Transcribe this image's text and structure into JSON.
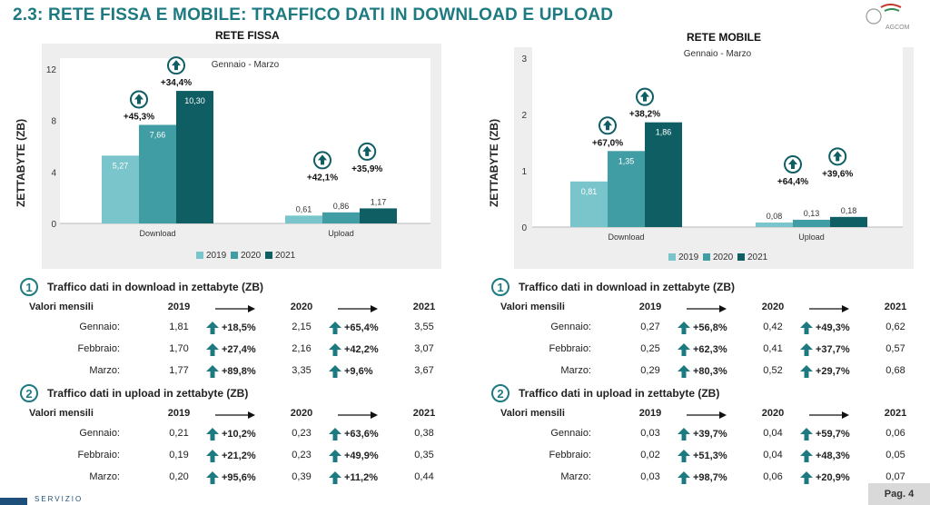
{
  "title": "2.3: RETE FISSA E MOBILE: TRAFFICO DATI IN DOWNLOAD E UPLOAD",
  "logo_text": "AGCOM",
  "colors": {
    "c2019": "#79c5cb",
    "c2020": "#3f9da3",
    "c2021": "#0e5e63",
    "accent": "#1d7a80"
  },
  "fissa": {
    "panel_title": "RETE FISSA",
    "ylabel": "ZETTABYTE (ZB)",
    "period": "Gennaio - Marzo",
    "ticks": [
      "0",
      "4",
      "8",
      "12"
    ],
    "legend": [
      "2019",
      "2020",
      "2021"
    ],
    "categories": [
      "Download",
      "Upload"
    ],
    "values_2019": [
      "5,27",
      "0,61"
    ],
    "values_2020": [
      "7,66",
      "0,86"
    ],
    "values_2021": [
      "10,30",
      "1,17"
    ],
    "growth_a": [
      "+45,3%",
      "+42,1%"
    ],
    "growth_b": [
      "+34,4%",
      "+35,9%"
    ]
  },
  "mobile": {
    "panel_title": "RETE MOBILE",
    "ylabel": "ZETTABYTE (ZB)",
    "period": "Gennaio - Marzo",
    "ticks": [
      "0",
      "1",
      "2",
      "3"
    ],
    "legend": [
      "2019",
      "2020",
      "2021"
    ],
    "categories": [
      "Download",
      "Upload"
    ],
    "values_2019": [
      "0,81",
      "0,08"
    ],
    "values_2020": [
      "1,35",
      "0,13"
    ],
    "values_2021": [
      "1,86",
      "0,18"
    ],
    "growth_a": [
      "+67,0%",
      "+64,4%"
    ],
    "growth_b": [
      "+38,2%",
      "+39,6%"
    ]
  },
  "chart_data": [
    {
      "type": "bar",
      "title": "RETE FISSA",
      "subtitle": "Gennaio - Marzo",
      "ylabel": "ZETTABYTE (ZB)",
      "ylim": [
        0,
        12
      ],
      "categories": [
        "Download",
        "Upload"
      ],
      "series": [
        {
          "name": "2019",
          "values": [
            5.27,
            0.61
          ]
        },
        {
          "name": "2020",
          "values": [
            7.66,
            0.86
          ]
        },
        {
          "name": "2021",
          "values": [
            10.3,
            1.17
          ]
        }
      ],
      "annotations": [
        "+45,3%",
        "+34,4%",
        "+42,1%",
        "+35,9%"
      ]
    },
    {
      "type": "bar",
      "title": "RETE MOBILE",
      "subtitle": "Gennaio - Marzo",
      "ylabel": "ZETTABYTE (ZB)",
      "ylim": [
        0,
        3
      ],
      "categories": [
        "Download",
        "Upload"
      ],
      "series": [
        {
          "name": "2019",
          "values": [
            0.81,
            0.08
          ]
        },
        {
          "name": "2020",
          "values": [
            1.35,
            0.13
          ]
        },
        {
          "name": "2021",
          "values": [
            1.86,
            0.18
          ]
        }
      ],
      "annotations": [
        "+67,0%",
        "+38,2%",
        "+64,4%",
        "+39,6%"
      ]
    }
  ],
  "tables": {
    "fissa_dl": {
      "num": "1",
      "title": "Traffico dati in download in zettabyte (ZB)",
      "label": "Valori mensili",
      "years": [
        "2019",
        "2020",
        "2021"
      ],
      "rows": [
        {
          "month": "Gennaio:",
          "v1": "1,81",
          "p1": "+18,5%",
          "v2": "2,15",
          "p2": "+65,4%",
          "v3": "3,55"
        },
        {
          "month": "Febbraio:",
          "v1": "1,70",
          "p1": "+27,4%",
          "v2": "2,16",
          "p2": "+42,2%",
          "v3": "3,07"
        },
        {
          "month": "Marzo:",
          "v1": "1,77",
          "p1": "+89,8%",
          "v2": "3,35",
          "p2": "+9,6%",
          "v3": "3,67"
        }
      ]
    },
    "fissa_ul": {
      "num": "2",
      "title": "Traffico dati in upload in zettabyte (ZB)",
      "label": "Valori mensili",
      "years": [
        "2019",
        "2020",
        "2021"
      ],
      "rows": [
        {
          "month": "Gennaio:",
          "v1": "0,21",
          "p1": "+10,2%",
          "v2": "0,23",
          "p2": "+63,6%",
          "v3": "0,38"
        },
        {
          "month": "Febbraio:",
          "v1": "0,19",
          "p1": "+21,2%",
          "v2": "0,23",
          "p2": "+49,9%",
          "v3": "0,35"
        },
        {
          "month": "Marzo:",
          "v1": "0,20",
          "p1": "+95,6%",
          "v2": "0,39",
          "p2": "+11,2%",
          "v3": "0,44"
        }
      ]
    },
    "mobile_dl": {
      "num": "1",
      "title": "Traffico dati in download in zettabyte (ZB)",
      "label": "Valori mensili",
      "years": [
        "2019",
        "2020",
        "2021"
      ],
      "rows": [
        {
          "month": "Gennaio:",
          "v1": "0,27",
          "p1": "+56,8%",
          "v2": "0,42",
          "p2": "+49,3%",
          "v3": "0,62"
        },
        {
          "month": "Febbraio:",
          "v1": "0,25",
          "p1": "+62,3%",
          "v2": "0,41",
          "p2": "+37,7%",
          "v3": "0,57"
        },
        {
          "month": "Marzo:",
          "v1": "0,29",
          "p1": "+80,3%",
          "v2": "0,52",
          "p2": "+29,7%",
          "v3": "0,68"
        }
      ]
    },
    "mobile_ul": {
      "num": "2",
      "title": "Traffico dati in upload in zettabyte (ZB)",
      "label": "Valori mensili",
      "years": [
        "2019",
        "2020",
        "2021"
      ],
      "rows": [
        {
          "month": "Gennaio:",
          "v1": "0,03",
          "p1": "+39,7%",
          "v2": "0,04",
          "p2": "+59,7%",
          "v3": "0,06"
        },
        {
          "month": "Febbraio:",
          "v1": "0,02",
          "p1": "+51,3%",
          "v2": "0,04",
          "p2": "+48,3%",
          "v3": "0,05"
        },
        {
          "month": "Marzo:",
          "v1": "0,03",
          "p1": "+98,7%",
          "v2": "0,06",
          "p2": "+20,9%",
          "v3": "0,07"
        }
      ]
    }
  },
  "footer": {
    "label": "SERVIZIO",
    "page": "Pag. 4"
  }
}
